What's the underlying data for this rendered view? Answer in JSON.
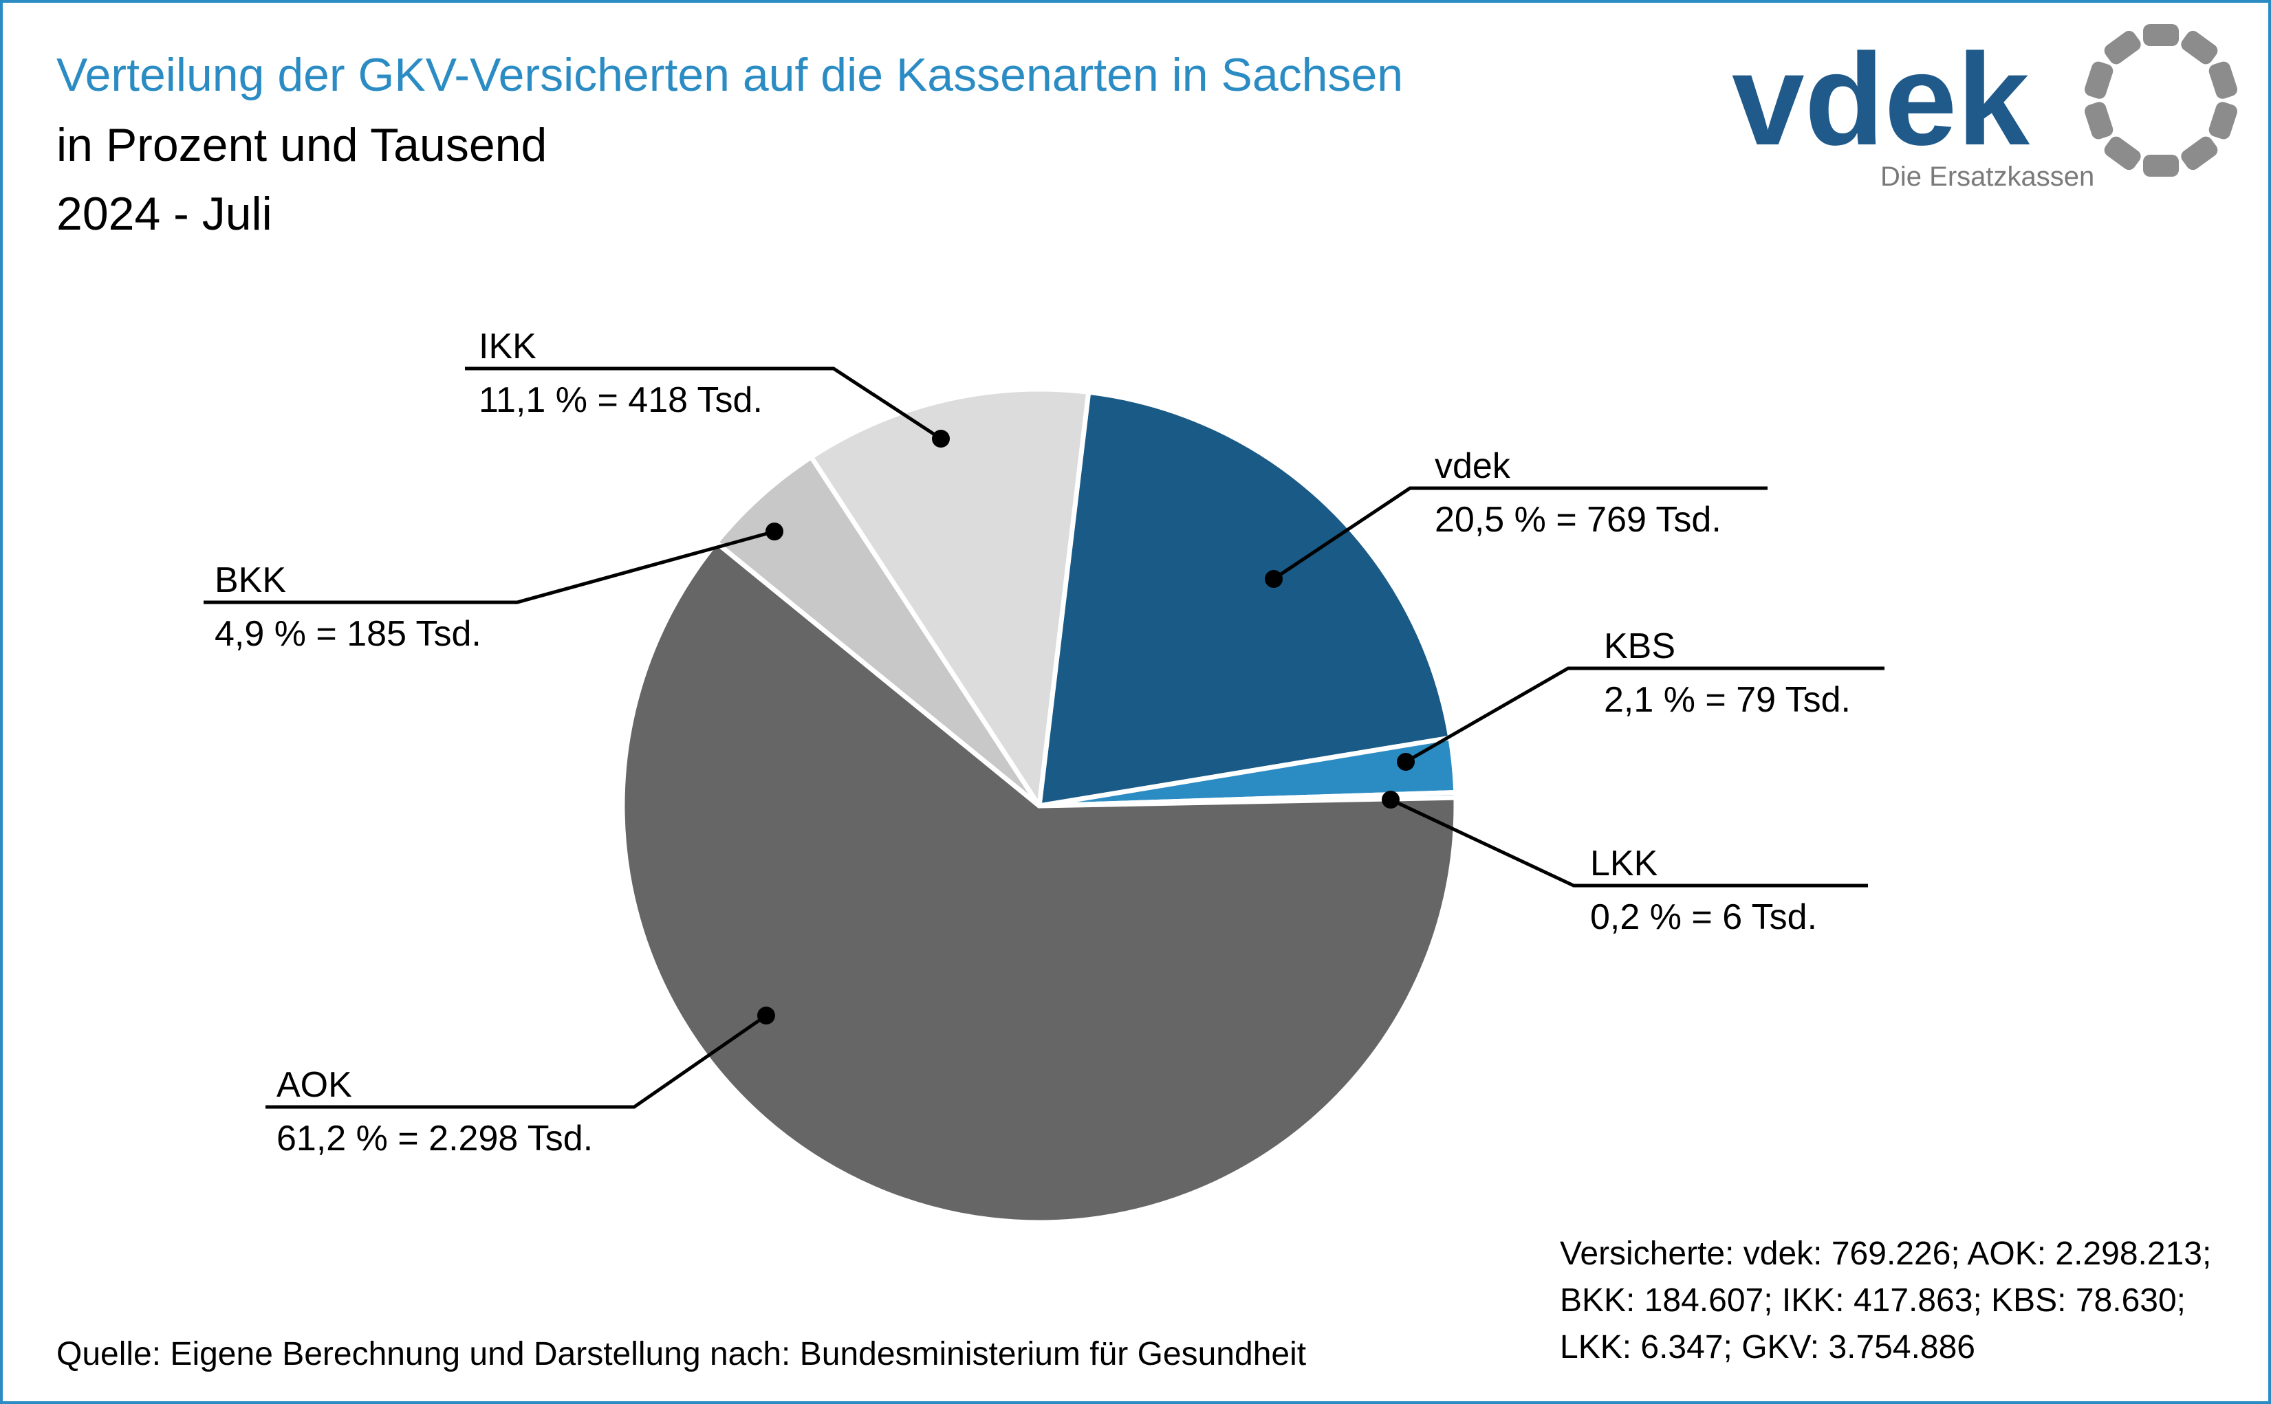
{
  "title": "Verteilung der GKV-Versicherten auf die Kassenarten in Sachsen",
  "subtitle": "in Prozent und Tausend",
  "period": "2024 - Juli",
  "source": "Quelle: Eigene Berechnung und Darstellung nach: Bundesministerium für Gesundheit",
  "totals_lines": [
    "Versicherte: vdek: 769.226; AOK: 2.298.213;",
    "BKK: 184.607; IKK: 417.863; KBS: 78.630;",
    "LKK: 6.347; GKV: 3.754.886"
  ],
  "logo": {
    "wordmark": "vdek",
    "tagline": "Die Ersatzkassen",
    "color": "#1f5a8a",
    "tagline_color": "#7a7a7a",
    "ring_color": "#8c8c8c"
  },
  "chart_data": {
    "type": "pie",
    "slices": [
      {
        "name": "vdek",
        "percent": 20.5,
        "value_label": "20,5 % = 769 Tsd.",
        "color": "#1a5a86"
      },
      {
        "name": "KBS",
        "percent": 2.1,
        "value_label": "2,1 % = 79 Tsd.",
        "color": "#2b8cc4"
      },
      {
        "name": "LKK",
        "percent": 0.2,
        "value_label": "0,2 % = 6 Tsd.",
        "color": "#5aa9d6"
      },
      {
        "name": "AOK",
        "percent": 61.2,
        "value_label": "61,2 % = 2.298 Tsd.",
        "color": "#666666"
      },
      {
        "name": "BKK",
        "percent": 4.9,
        "value_label": "4,9 % = 185 Tsd.",
        "color": "#c8c8c8"
      },
      {
        "name": "IKK",
        "percent": 11.1,
        "value_label": "11,1 % = 418 Tsd.",
        "color": "#dcdcdc"
      }
    ]
  }
}
